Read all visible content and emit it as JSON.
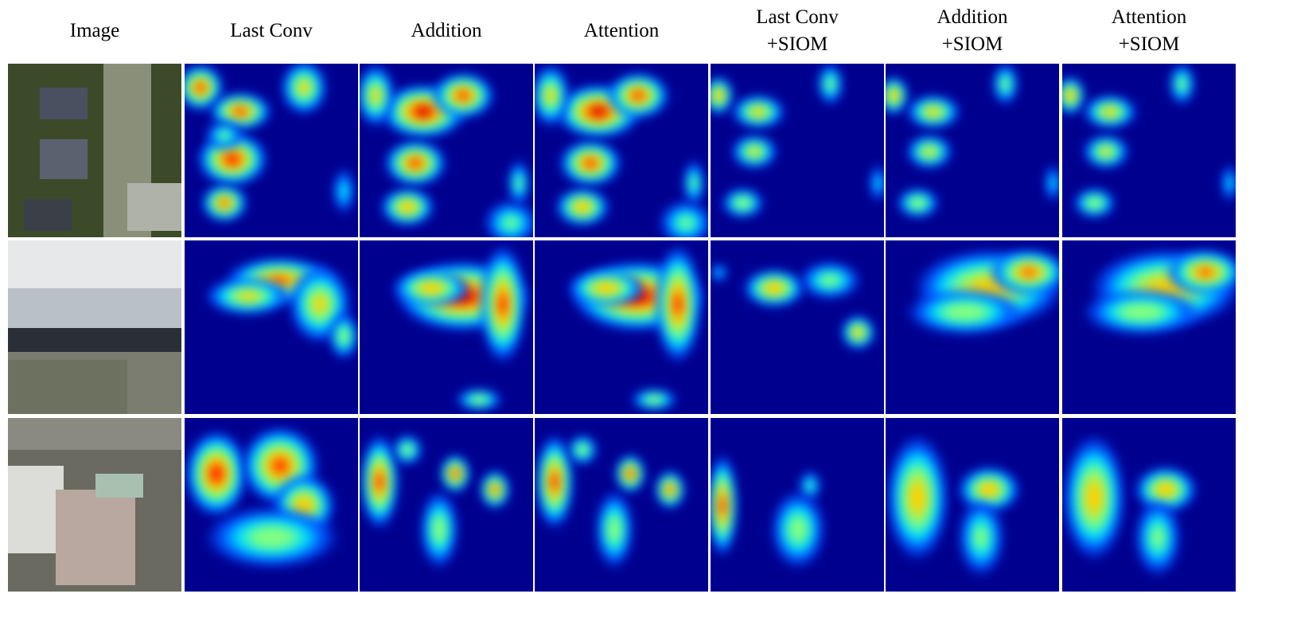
{
  "figure": {
    "columns": [
      {
        "line1": "Image",
        "line2": ""
      },
      {
        "line1": "Last Conv",
        "line2": ""
      },
      {
        "line1": "Addition",
        "line2": ""
      },
      {
        "line1": "Attention",
        "line2": ""
      },
      {
        "line1": "Last Conv",
        "line2": "+SIOM"
      },
      {
        "line1": "Addition",
        "line2": "+SIOM"
      },
      {
        "line1": "Attention",
        "line2": "+SIOM"
      }
    ],
    "rows": 3,
    "colormap": "jet",
    "background_color": "#00008f"
  }
}
